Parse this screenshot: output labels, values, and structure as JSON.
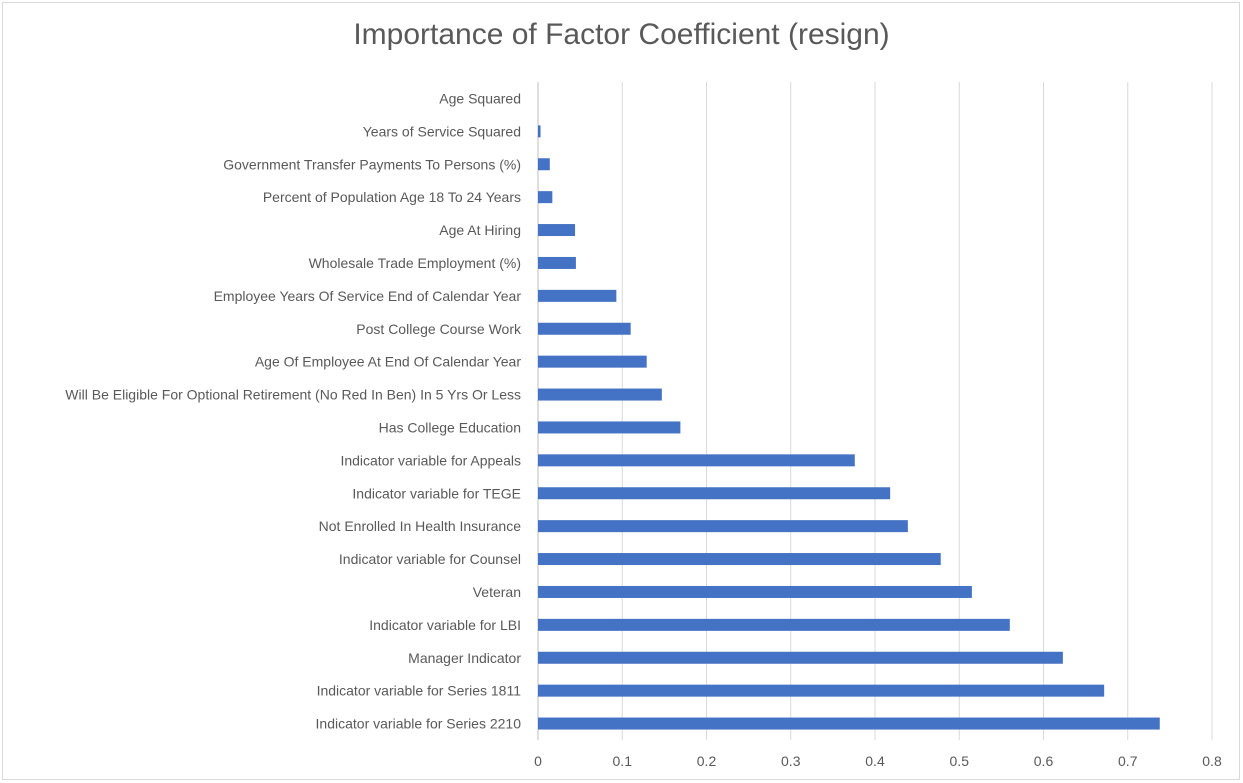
{
  "chart_data": {
    "type": "bar",
    "orientation": "horizontal",
    "title": "Importance of Factor Coefficient (resign)",
    "xlabel": "",
    "ylabel": "",
    "xlim": [
      0,
      0.8
    ],
    "xticks": [
      "0",
      "0.1",
      "0.2",
      "0.3",
      "0.4",
      "0.5",
      "0.6",
      "0.7",
      "0.8"
    ],
    "grid": true,
    "legend": "none",
    "bar_color": "#4472c4",
    "categories": [
      "Age Squared",
      "Years of Service Squared",
      "Government Transfer Payments To Persons (%)",
      "Percent of Population Age 18 To 24 Years",
      "Age At Hiring",
      "Wholesale Trade Employment (%)",
      "Employee Years Of Service  End of Calendar Year",
      "Post College Course Work",
      "Age Of Employee At End Of Calendar Year",
      "Will Be Eligible For Optional Retirement (No Red In Ben) In 5 Yrs Or Less",
      "Has College Education",
      "Indicator variable for Appeals",
      "Indicator variable for TEGE",
      "Not Enrolled In Health Insurance",
      "Indicator variable for Counsel",
      "Veteran",
      "Indicator variable for LBI",
      "Manager Indicator",
      "Indicator variable for Series 1811",
      "Indicator variable for Series 2210"
    ],
    "values": [
      0.0,
      0.003,
      0.014,
      0.017,
      0.044,
      0.045,
      0.093,
      0.11,
      0.129,
      0.147,
      0.169,
      0.376,
      0.418,
      0.439,
      0.478,
      0.515,
      0.56,
      0.623,
      0.672,
      0.738
    ]
  }
}
